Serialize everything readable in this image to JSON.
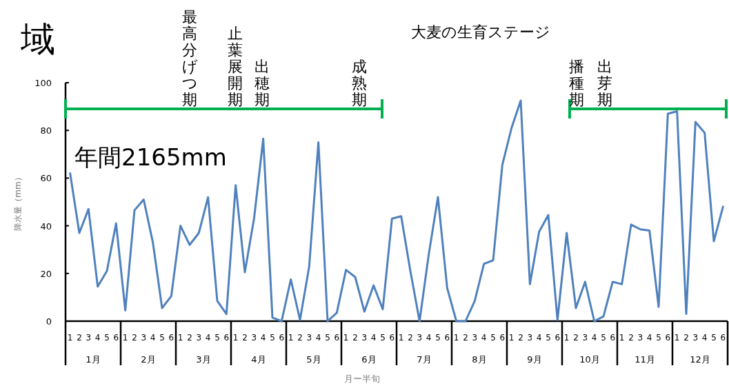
{
  "chart_data": {
    "type": "line",
    "title": "域",
    "ylabel": "降水量（mm）",
    "xlabel": "月ー半旬",
    "categories": [
      "1",
      "2",
      "3",
      "4",
      "5",
      "6",
      "1",
      "2",
      "3",
      "4",
      "5",
      "6",
      "1",
      "2",
      "3",
      "4",
      "5",
      "6",
      "1",
      "2",
      "3",
      "4",
      "5",
      "6",
      "1",
      "2",
      "3",
      "4",
      "5",
      "6",
      "1",
      "2",
      "3",
      "4",
      "5",
      "6",
      "1",
      "2",
      "3",
      "4",
      "5",
      "6",
      "1",
      "2",
      "3",
      "4",
      "5",
      "6",
      "1",
      "2",
      "3",
      "4",
      "5",
      "6",
      "1",
      "2",
      "3",
      "4",
      "5",
      "6",
      "1",
      "2",
      "3",
      "4",
      "5",
      "6",
      "1",
      "2",
      "3",
      "4",
      "5",
      "6"
    ],
    "series": [
      {
        "color": "#4f81bd",
        "values": [
          62,
          37,
          47,
          14.5,
          21,
          41,
          4.5,
          46.5,
          51,
          33,
          5.5,
          10.5,
          40,
          32,
          37,
          52,
          8.5,
          3,
          57,
          20.5,
          43,
          76.5,
          1.5,
          0,
          17.5,
          0.5,
          23,
          75,
          0,
          3.5,
          21.5,
          18.5,
          4,
          15,
          5,
          43,
          44,
          21,
          0,
          28,
          52,
          14,
          0,
          0,
          8.5,
          24,
          25.5,
          65.5,
          81,
          92.5,
          15.5,
          37.5,
          44.5,
          0.5,
          37,
          5.5,
          16.5,
          0,
          2,
          16.5,
          15.5,
          40.5,
          38.5,
          38,
          6,
          87,
          88,
          3,
          83.5,
          79,
          33.5,
          48
        ]
      }
    ],
    "ylim": [
      0,
      100
    ],
    "yticks": [
      0,
      20,
      40,
      60,
      80,
      100
    ],
    "grid": false,
    "marker": "none",
    "line_style": "solid",
    "annotations": [
      "年間2165mm",
      "大麦の生育ステージ",
      "最高分げつ期",
      "止葉展開期",
      "出穂期",
      "成熟期",
      "播種期",
      "出芽期",
      "1月",
      "2月",
      "3月",
      "4月",
      "5月",
      "6月",
      "7月",
      "8月",
      "9月",
      "10月",
      "11月",
      "12月"
    ]
  }
}
